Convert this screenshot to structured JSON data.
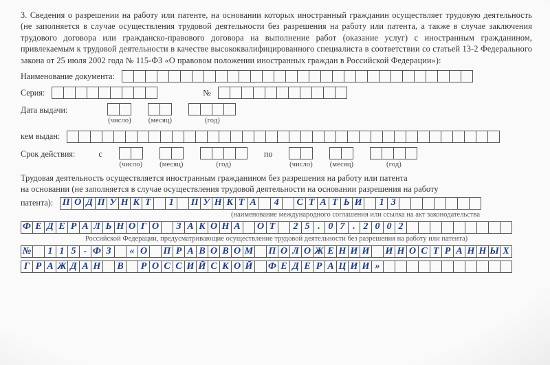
{
  "section": {
    "number": "3.",
    "text": "Сведения о разрешении на работу или патенте, на основании которых иностранный гражданин осуществляет трудовую деятельность (не заполняется в случае осуществления трудовой деятельности без разрешения на работу или патента, а также в случае заключения трудового договора или гражданско-правового договора на выполнение работ (оказание услуг) с иностранным гражданином, привлекаемым к трудовой деятельности в качестве высоко­квалифицированного специалиста в соответствии со статьей 13-2 Федерального закона от 25 июля 2002 года № 115-ФЗ «О правовом положении иностранных граждан в Российской Федерации»):"
  },
  "fields": {
    "doc_name_label": "Наименование документа:",
    "series_label": "Серия:",
    "number_label": "№",
    "issue_date_label": "Дата выдачи:",
    "day_sub": "(число)",
    "month_sub": "(месяц)",
    "year_sub": "(год)",
    "issued_by_label": "кем выдан:",
    "validity_label": "Срок действия:",
    "from_label": "с",
    "to_label": "по"
  },
  "freeform": {
    "line1": "Трудовая деятельность осуществляется иностранным гражданином без разрешения на работу или патента",
    "line2": "на основании  (не заполняется  в случае осуществления  трудовой  деятельности на основании разрешения на работу",
    "line3_label": "патента):"
  },
  "filled": {
    "line1": "ПОДПУНКТ 1 ПУНКТА 4 СТАТЬИ 13",
    "note1": "(наименование международного соглашения или ссылка на акт законодательства",
    "line2": "ФЕДЕРАЛЬНОГО ЗАКОНА ОТ 25.07.2002",
    "note2": "Российской Федерации, предусматривающие осуществление трудовой деятельности без разрешения на работу или патента)",
    "line3": "№ 115-ФЗ «О ПРАВОВОМ ПОЛОЖЕНИИ ИНОСТРАННЫХ",
    "line4": "ГРАЖДАН В РОССИЙСКОЙ ФЕДЕРАЦИИ»"
  },
  "layout": {
    "doc_name_cells": 30,
    "series_cells": 9,
    "number_cells": 11,
    "issued_by_cells": 37,
    "line1_total": 36,
    "full_line_cells": 42,
    "cell_color_filled": "#1a3a7a"
  }
}
